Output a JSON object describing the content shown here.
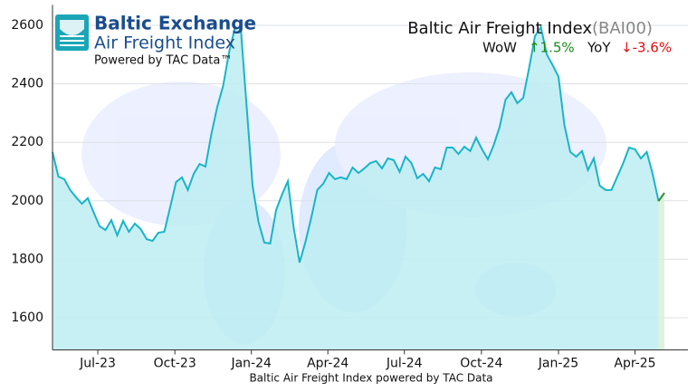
{
  "chart_data": {
    "type": "line",
    "title": "Baltic Air Freight Index",
    "code": "(BAI00)",
    "brand": "Baltic Exchange",
    "brand_sub": "Air Freight Index",
    "powered": "Powered by TAC Data™",
    "wow_label": "WoW",
    "wow": "↑1.5%",
    "yoy_label": "YoY",
    "yoy": "↓-3.6%",
    "x_label": "Baltic Air Freight Index powered by TAC Data",
    "values": [
      2167,
      2083,
      2074,
      2037,
      2012,
      1990,
      2009,
      1960,
      1913,
      1900,
      1934,
      1882,
      1931,
      1894,
      1922,
      1903,
      1869,
      1863,
      1891,
      1894,
      1978,
      2064,
      2080,
      2037,
      2092,
      2126,
      2117,
      2228,
      2321,
      2393,
      2507,
      2591,
      2591,
      2321,
      2052,
      1928,
      1857,
      1854,
      1968,
      2021,
      2067,
      1907,
      1789,
      1860,
      1944,
      2037,
      2058,
      2095,
      2074,
      2080,
      2074,
      2114,
      2095,
      2111,
      2129,
      2136,
      2111,
      2145,
      2139,
      2099,
      2151,
      2129,
      2077,
      2092,
      2067,
      2114,
      2108,
      2182,
      2182,
      2160,
      2185,
      2170,
      2216,
      2176,
      2142,
      2191,
      2253,
      2346,
      2371,
      2334,
      2352,
      2454,
      2563,
      2594,
      2501,
      2464,
      2424,
      2259,
      2167,
      2151,
      2170,
      2105,
      2145,
      2052,
      2037,
      2037,
      2083,
      2129,
      2182,
      2176,
      2145,
      2167,
      2092,
      1999,
      2027
    ],
    "color": "#1ab4c8",
    "fill": "#bdedf2",
    "last_color": "#2f8f2f",
    "last_fill": "#d8f0d8",
    "xlim": [
      0,
      108
    ],
    "xticks": [
      {
        "value": 7.7,
        "label": "Jul-23"
      },
      {
        "value": 20.8,
        "label": "Oct-23"
      },
      {
        "value": 33.8,
        "label": "Jan-24"
      },
      {
        "value": 46.8,
        "label": "Apr-24"
      },
      {
        "value": 59.8,
        "label": "Jul-24"
      },
      {
        "value": 72.9,
        "label": "Oct-24"
      },
      {
        "value": 86,
        "label": "Jan-25"
      },
      {
        "value": 99,
        "label": "Apr-25"
      }
    ],
    "ylim": [
      1490,
      2670
    ],
    "yticks": [
      1600,
      1800,
      2000,
      2200,
      2400,
      2600
    ],
    "grid": true
  }
}
